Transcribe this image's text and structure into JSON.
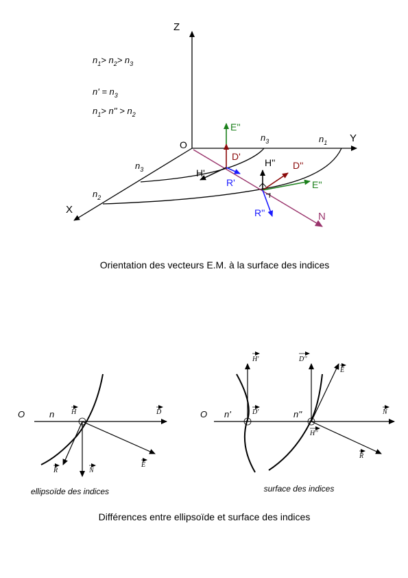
{
  "figure1": {
    "caption": "Orientation des vecteurs E.M. à la surface des indices",
    "axes": {
      "z": "Z",
      "y": "Y",
      "x": "X",
      "origin": "O"
    },
    "relations": {
      "r1": {
        "a": "n",
        "a_sub": "1",
        "b": "> n",
        "b_sub": "2",
        "c": "> n",
        "c_sub": "3"
      },
      "r2": {
        "a": "n' = n",
        "a_sub": "3"
      },
      "r3": {
        "a": "n",
        "a_sub": "1",
        "b": "> n'' > n",
        "b_sub": "2"
      }
    },
    "surface_labels": {
      "n3_top": {
        "t": "n",
        "s": "3"
      },
      "n1_top": {
        "t": "n",
        "s": "1"
      },
      "n3_left": {
        "t": "n",
        "s": "3"
      },
      "n2_left": {
        "t": "n",
        "s": "2"
      }
    },
    "vectors": {
      "E2": "E''",
      "D1": "D'",
      "H2": "H''",
      "D2": "D''",
      "H1": "H'",
      "R1": "R'",
      "E2b": "E''",
      "R2": "R''",
      "N": "N"
    },
    "colors": {
      "green": "#1a7f1a",
      "darkred": "#8b0a0a",
      "blue": "#1a1aff",
      "purple": "#99336b",
      "black": "#000000"
    }
  },
  "figure2": {
    "caption": "Différences entre ellipsoïde et surface des indices",
    "left": {
      "subtitle": "ellipsoïde des indices",
      "O": "O",
      "n": "n",
      "H": "H",
      "D": "D",
      "R": "R",
      "N": "N",
      "E": "E"
    },
    "right": {
      "subtitle": "surface des indices",
      "O": "O",
      "n1": "n'",
      "n2": "n''",
      "H1": "H'",
      "D1": "D'",
      "D2": "D''",
      "H2": "H''",
      "E": "E",
      "N": "N",
      "R": "R"
    }
  }
}
